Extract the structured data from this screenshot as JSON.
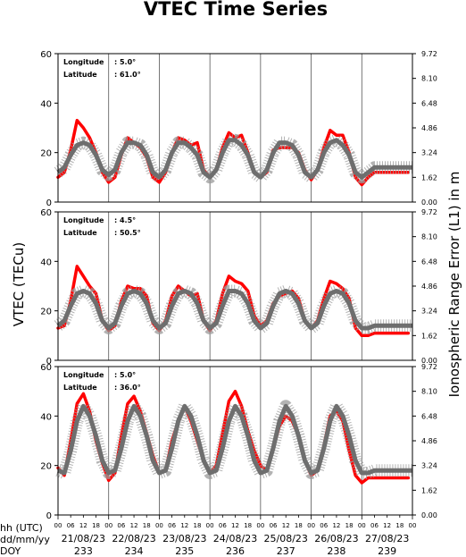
{
  "chart_data": {
    "type": "line",
    "title": "VTEC Time Series",
    "ylabel_left": "VTEC (TECu)",
    "ylabel_right": "Ionospheric Range Error (L1) in m",
    "ylim": [
      0,
      60
    ],
    "ylim_right": [
      0,
      9.72
    ],
    "yticks_left": [
      "0",
      "20",
      "40",
      "60"
    ],
    "yticks_right": [
      "0.00",
      "1.62",
      "3.24",
      "4.86",
      "6.48",
      "8.10",
      "9.72"
    ],
    "hour_ticks": [
      "00",
      "06",
      "12",
      "18"
    ],
    "x_row_labels": [
      "hh (UTC)",
      "dd/mm/yy",
      "DOY"
    ],
    "dates": [
      "21/08/23",
      "22/08/23",
      "23/08/23",
      "24/08/23",
      "25/08/23",
      "26/08/23",
      "27/08/23"
    ],
    "doy": [
      "233",
      "234",
      "235",
      "236",
      "237",
      "238",
      "239"
    ],
    "panels": [
      {
        "longitude_label": "Longitude",
        "longitude": ": 5.0°",
        "latitude_label": "Latitude",
        "latitude": ": 61.0°",
        "series": [
          {
            "color": "#ff0000",
            "x_hours": [
              0,
              3,
              6,
              9,
              12,
              15,
              18,
              21,
              24,
              27,
              30,
              33,
              36,
              39,
              42,
              45,
              48,
              51,
              54,
              57,
              60,
              63,
              66,
              69,
              72,
              75,
              78,
              81,
              84,
              87,
              90,
              93,
              96,
              99,
              102,
              105,
              108,
              111,
              114,
              117,
              120,
              123,
              126,
              129,
              132,
              135,
              138,
              141,
              144,
              147,
              150,
              153,
              156,
              159,
              162,
              165,
              166
            ],
            "values": [
              10,
              12,
              21,
              33,
              30,
              26,
              20,
              12,
              8,
              10,
              19,
              26,
              24,
              22,
              18,
              10,
              8,
              12,
              20,
              26,
              25,
              23,
              24,
              13,
              10,
              13,
              22,
              28,
              26,
              27,
              20,
              12,
              10,
              12,
              21,
              22,
              22,
              22,
              20,
              13,
              9,
              13,
              22,
              29,
              27,
              27,
              20,
              10,
              7,
              10,
              12,
              12,
              12,
              12,
              12,
              12,
              12
            ]
          },
          {
            "color": "#808080",
            "x_hours": [
              0,
              3,
              6,
              9,
              12,
              15,
              18,
              21,
              24,
              27,
              30,
              33,
              36,
              39,
              42,
              45,
              48,
              51,
              54,
              57,
              60,
              63,
              66,
              69,
              72,
              75,
              78,
              81,
              84,
              87,
              90,
              93,
              96,
              99,
              102,
              105,
              108,
              111,
              114,
              117,
              120,
              123,
              126,
              129,
              132,
              135,
              138,
              141,
              144,
              147,
              150,
              153,
              156,
              159,
              162,
              165,
              168
            ],
            "values": [
              12,
              14,
              19,
              23,
              24,
              23,
              19,
              13,
              11,
              13,
              20,
              24,
              24,
              23,
              19,
              12,
              10,
              13,
              20,
              24,
              24,
              22,
              19,
              12,
              10,
              13,
              20,
              25,
              25,
              23,
              19,
              12,
              10,
              13,
              20,
              24,
              24,
              23,
              19,
              12,
              10,
              13,
              20,
              24,
              25,
              23,
              19,
              12,
              10,
              12,
              14,
              14,
              14,
              14,
              14,
              14,
              14
            ]
          }
        ]
      },
      {
        "longitude_label": "Longitude",
        "longitude": ": 4.5°",
        "latitude_label": "Latitude",
        "latitude": ": 50.5°",
        "series": [
          {
            "color": "#ff0000",
            "x_hours": [
              0,
              3,
              6,
              9,
              12,
              15,
              18,
              21,
              24,
              27,
              30,
              33,
              36,
              39,
              42,
              45,
              48,
              51,
              54,
              57,
              60,
              63,
              66,
              69,
              72,
              75,
              78,
              81,
              84,
              87,
              90,
              93,
              96,
              99,
              102,
              105,
              108,
              111,
              114,
              117,
              120,
              123,
              126,
              129,
              132,
              135,
              138,
              141,
              144,
              147,
              150,
              153,
              156,
              159,
              162,
              165,
              166
            ],
            "values": [
              13,
              14,
              24,
              38,
              34,
              30,
              27,
              16,
              12,
              14,
              24,
              30,
              29,
              29,
              26,
              15,
              12,
              16,
              26,
              30,
              28,
              26,
              27,
              16,
              12,
              16,
              27,
              34,
              32,
              31,
              28,
              18,
              14,
              16,
              23,
              26,
              27,
              28,
              25,
              16,
              13,
              16,
              25,
              32,
              31,
              29,
              25,
              13,
              10,
              10,
              11,
              11,
              11,
              11,
              11,
              11,
              11
            ]
          },
          {
            "color": "#808080",
            "x_hours": [
              0,
              3,
              6,
              9,
              12,
              15,
              18,
              21,
              24,
              27,
              30,
              33,
              36,
              39,
              42,
              45,
              48,
              51,
              54,
              57,
              60,
              63,
              66,
              69,
              72,
              75,
              78,
              81,
              84,
              87,
              90,
              93,
              96,
              99,
              102,
              105,
              108,
              111,
              114,
              117,
              120,
              123,
              126,
              129,
              132,
              135,
              138,
              141,
              144,
              147,
              150,
              153,
              156,
              159,
              162,
              165,
              168
            ],
            "values": [
              14,
              16,
              22,
              27,
              28,
              27,
              23,
              16,
              13,
              15,
              22,
              27,
              28,
              27,
              23,
              16,
              13,
              15,
              22,
              27,
              28,
              27,
              23,
              16,
              13,
              15,
              22,
              28,
              28,
              27,
              23,
              16,
              13,
              15,
              22,
              27,
              28,
              27,
              23,
              16,
              13,
              15,
              22,
              27,
              28,
              27,
              23,
              16,
              13,
              13,
              14,
              14,
              14,
              14,
              14,
              14,
              14
            ]
          }
        ]
      },
      {
        "longitude_label": "Longitude",
        "longitude": ": 5.0°",
        "latitude_label": "Latitude",
        "latitude": ": 36.0°",
        "series": [
          {
            "color": "#ff0000",
            "x_hours": [
              0,
              3,
              6,
              9,
              12,
              15,
              18,
              21,
              24,
              27,
              30,
              33,
              36,
              39,
              42,
              45,
              48,
              51,
              54,
              57,
              60,
              63,
              66,
              69,
              72,
              75,
              78,
              81,
              84,
              87,
              90,
              93,
              96,
              99,
              102,
              105,
              108,
              111,
              114,
              117,
              120,
              123,
              126,
              129,
              132,
              135,
              138,
              141,
              144,
              147,
              150,
              153,
              156,
              159,
              162,
              165,
              166
            ],
            "values": [
              19,
              16,
              30,
              45,
              49,
              42,
              30,
              21,
              14,
              17,
              32,
              45,
              48,
              42,
              33,
              24,
              17,
              18,
              30,
              38,
              44,
              38,
              30,
              22,
              17,
              20,
              33,
              46,
              50,
              44,
              34,
              26,
              20,
              18,
              27,
              36,
              40,
              38,
              32,
              22,
              16,
              18,
              28,
              40,
              42,
              38,
              26,
              16,
              13,
              15,
              15,
              15,
              15,
              15,
              15,
              15,
              15
            ]
          },
          {
            "color": "#808080",
            "x_hours": [
              0,
              3,
              6,
              9,
              12,
              15,
              18,
              21,
              24,
              27,
              30,
              33,
              36,
              39,
              42,
              45,
              48,
              51,
              54,
              57,
              60,
              63,
              66,
              69,
              72,
              75,
              78,
              81,
              84,
              87,
              90,
              93,
              96,
              99,
              102,
              105,
              108,
              111,
              114,
              117,
              120,
              123,
              126,
              129,
              132,
              135,
              138,
              141,
              144,
              147,
              150,
              153,
              156,
              159,
              162,
              165,
              168
            ],
            "values": [
              18,
              17,
              26,
              38,
              44,
              40,
              32,
              22,
              17,
              18,
              27,
              38,
              44,
              40,
              32,
              22,
              17,
              18,
              27,
              38,
              44,
              40,
              32,
              22,
              17,
              18,
              27,
              38,
              44,
              40,
              32,
              22,
              17,
              18,
              27,
              38,
              44,
              40,
              32,
              22,
              17,
              18,
              27,
              38,
              44,
              40,
              32,
              22,
              17,
              17,
              18,
              18,
              18,
              18,
              18,
              18,
              18
            ]
          }
        ]
      }
    ]
  }
}
